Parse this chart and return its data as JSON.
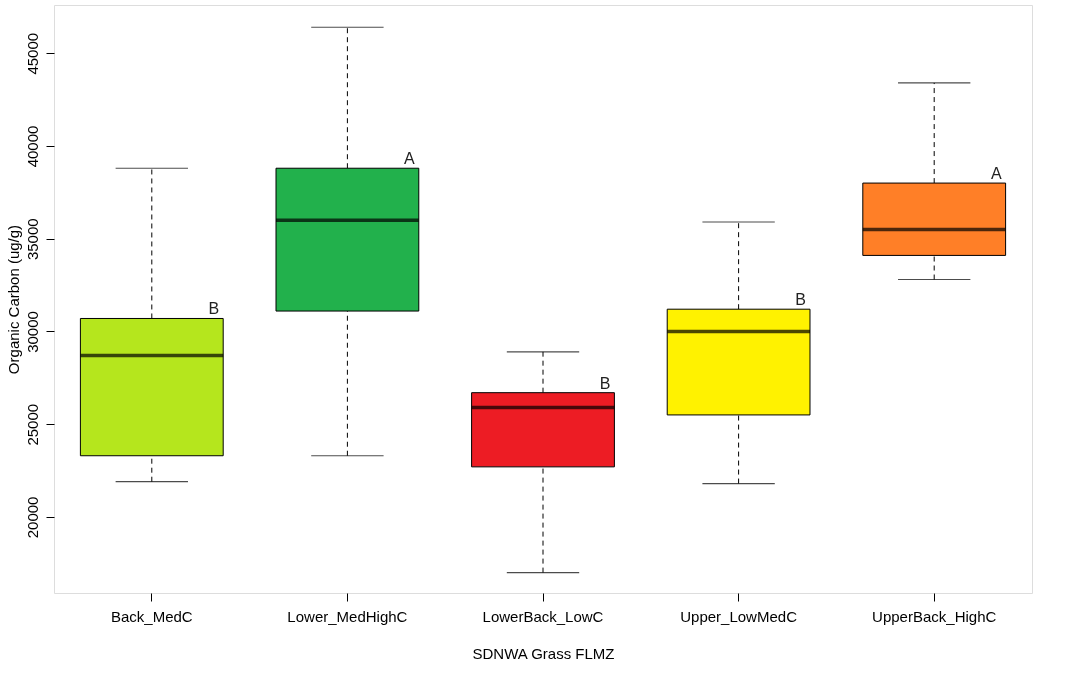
{
  "chart_data": {
    "type": "box",
    "xlabel": "SDNWA Grass FLMZ",
    "ylabel": "Organic Carbon (ug/g)",
    "categories": [
      "Back_MedC",
      "Lower_MedHighC",
      "LowerBack_LowC",
      "Upper_LowMedC",
      "UpperBack_HighC"
    ],
    "colors": [
      "#b5e61d",
      "#22b14c",
      "#ed1c24",
      "#fff200",
      "#ff7f27"
    ],
    "boxes": [
      {
        "low": 21900,
        "q1": 23300,
        "median": 28700,
        "q3": 30700,
        "high": 38800
      },
      {
        "low": 23300,
        "q1": 31100,
        "median": 36000,
        "q3": 38800,
        "high": 46400
      },
      {
        "low": 17000,
        "q1": 22700,
        "median": 25900,
        "q3": 26700,
        "high": 28900
      },
      {
        "low": 21800,
        "q1": 25500,
        "median": 30000,
        "q3": 31200,
        "high": 35900
      },
      {
        "low": 32800,
        "q1": 34100,
        "median": 35500,
        "q3": 38000,
        "high": 43400
      }
    ],
    "ylim": [
      15900,
      47600
    ],
    "yticks": [
      20000,
      25000,
      30000,
      35000,
      40000,
      45000
    ],
    "grid": false,
    "legend": false,
    "annotations": [
      "B",
      "A",
      "B",
      "B",
      "A"
    ]
  }
}
